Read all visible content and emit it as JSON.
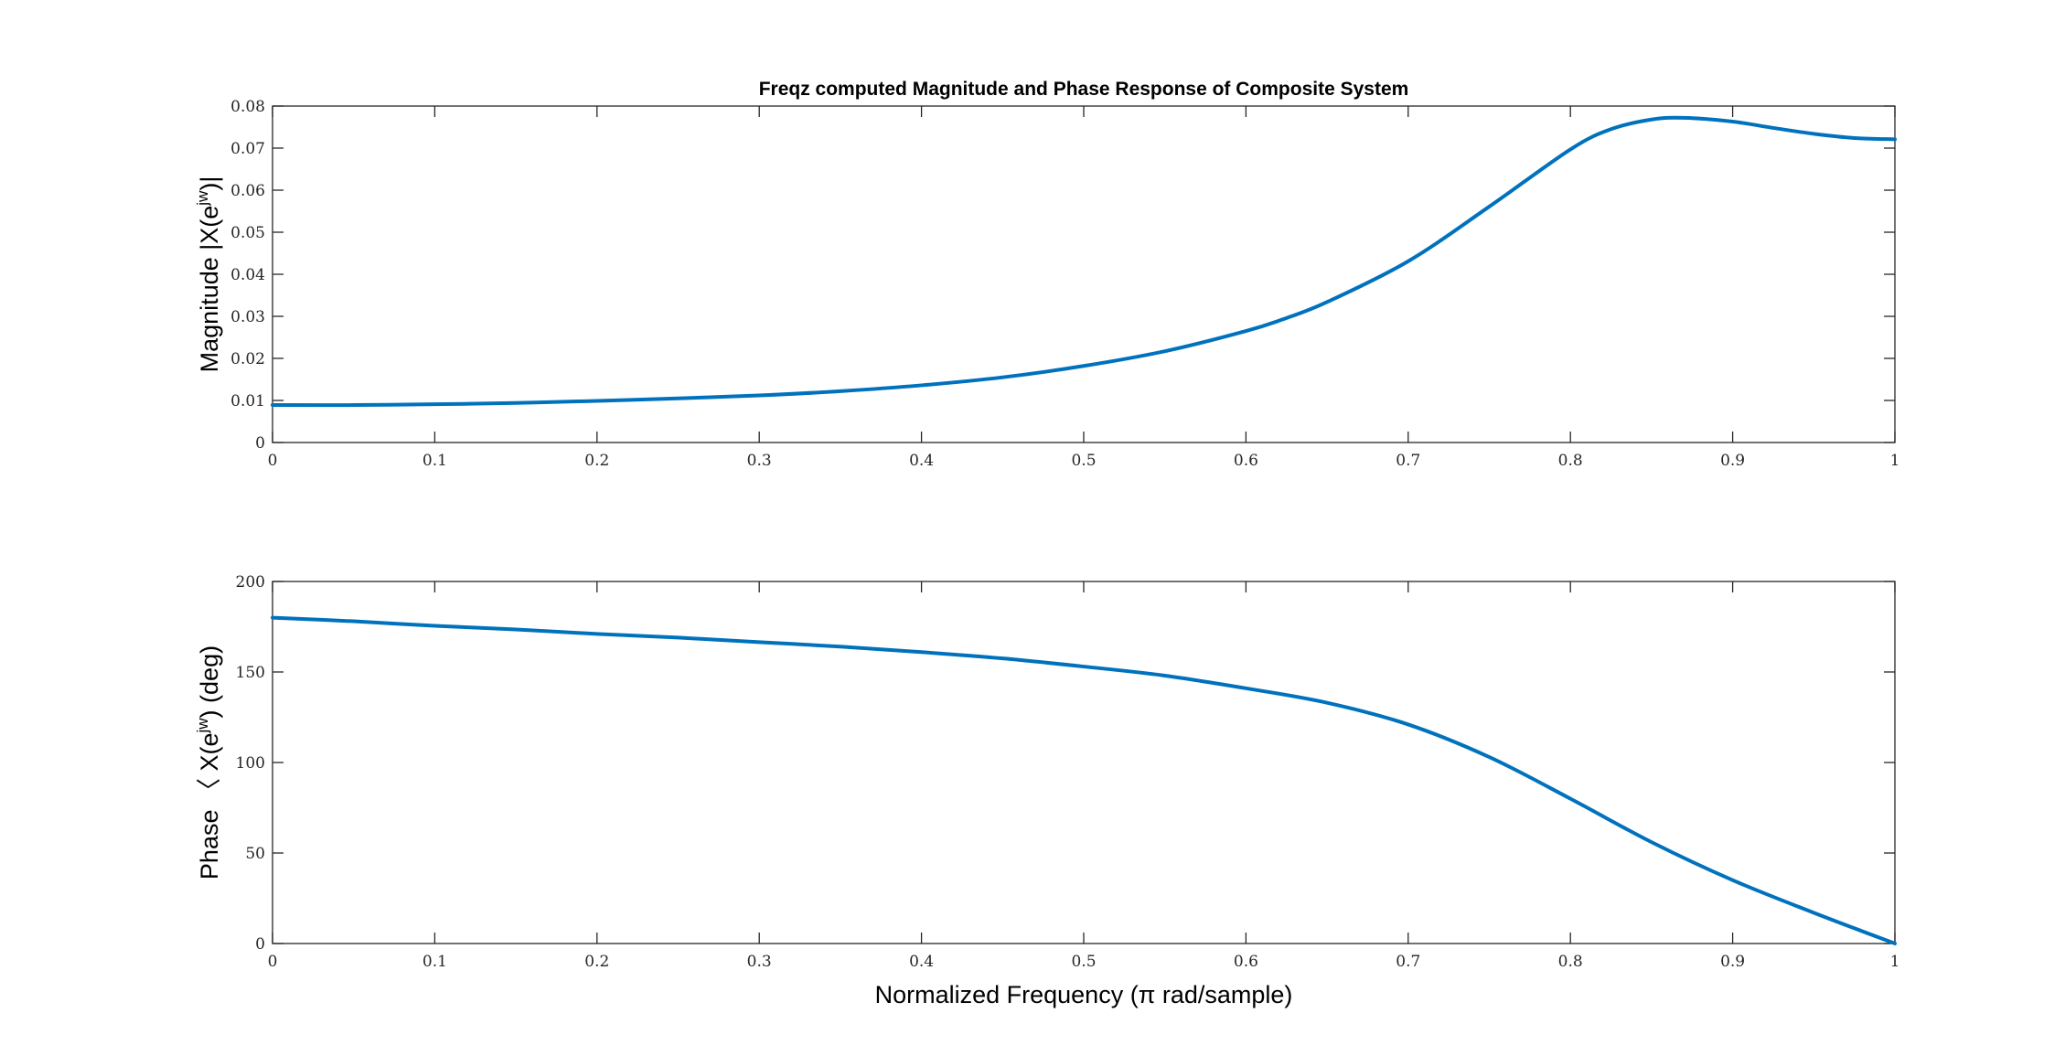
{
  "chart_data": [
    {
      "type": "line",
      "title": "Freqz computed Magnitude and Phase Response of Composite System",
      "xlabel": "",
      "ylabel_parts": [
        "Magnitude |X(e",
        "jw",
        ")|"
      ],
      "xlim": [
        0,
        1
      ],
      "ylim": [
        0,
        0.08
      ],
      "xticks": [
        "0",
        "0.1",
        "0.2",
        "0.3",
        "0.4",
        "0.5",
        "0.6",
        "0.7",
        "0.8",
        "0.9",
        "1"
      ],
      "yticks": [
        "0",
        "0.01",
        "0.02",
        "0.03",
        "0.04",
        "0.05",
        "0.06",
        "0.07",
        "0.08"
      ],
      "grid": false,
      "color": "#0072BD",
      "series": [
        {
          "x": [
            0,
            0.05,
            0.1,
            0.15,
            0.2,
            0.25,
            0.3,
            0.35,
            0.4,
            0.45,
            0.5,
            0.55,
            0.6,
            0.625,
            0.65,
            0.7,
            0.75,
            0.8,
            0.825,
            0.85,
            0.87,
            0.9,
            0.925,
            0.95,
            0.975,
            1.0
          ],
          "y": [
            0.0089,
            0.0089,
            0.0091,
            0.0094,
            0.0099,
            0.0105,
            0.0112,
            0.0122,
            0.0136,
            0.0155,
            0.0182,
            0.0217,
            0.0265,
            0.0296,
            0.0334,
            0.0431,
            0.0561,
            0.0697,
            0.0745,
            0.0768,
            0.0772,
            0.0763,
            0.0748,
            0.0734,
            0.0724,
            0.0721
          ]
        }
      ]
    },
    {
      "type": "line",
      "title": "",
      "xlabel": "Normalized Frequency (π rad/sample)",
      "ylabel_parts": [
        "Phase 〈 X(e",
        "jw",
        ") (deg)"
      ],
      "xlim": [
        0,
        1
      ],
      "ylim": [
        0,
        200
      ],
      "xticks": [
        "0",
        "0.1",
        "0.2",
        "0.3",
        "0.4",
        "0.5",
        "0.6",
        "0.7",
        "0.8",
        "0.9",
        "1"
      ],
      "yticks": [
        "0",
        "50",
        "100",
        "150",
        "200"
      ],
      "grid": false,
      "color": "#0072BD",
      "series": [
        {
          "x": [
            0,
            0.05,
            0.1,
            0.15,
            0.2,
            0.25,
            0.3,
            0.35,
            0.4,
            0.45,
            0.5,
            0.55,
            0.6,
            0.65,
            0.7,
            0.75,
            0.8,
            0.85,
            0.9,
            0.95,
            1.0
          ],
          "y": [
            180,
            178,
            175.5,
            173.5,
            171,
            169,
            166.5,
            164,
            161,
            157.5,
            153,
            148,
            141,
            133,
            121,
            103,
            80,
            56,
            35,
            17,
            0
          ]
        }
      ]
    }
  ]
}
